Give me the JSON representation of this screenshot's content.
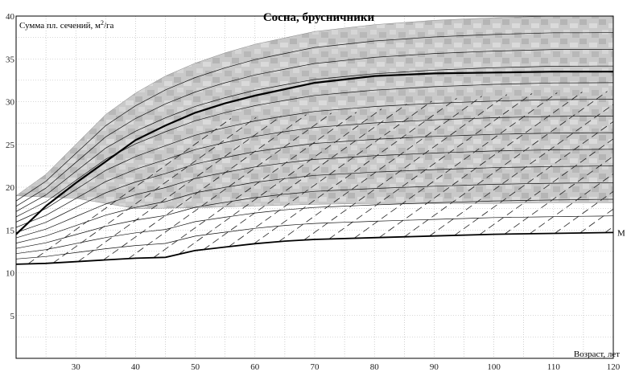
{
  "chart_data": {
    "type": "line",
    "title": "Сосна, брусничники",
    "ylabel_main": "Сумма пл. сечений, м",
    "ylabel_sup": "2",
    "ylabel_unit": "/га",
    "xlabel": "Возраст, лет",
    "xlim": [
      20,
      120
    ],
    "ylim": [
      0,
      40
    ],
    "x_ticks": [
      30,
      40,
      50,
      60,
      70,
      80,
      90,
      100,
      110,
      120
    ],
    "y_ticks": [
      5,
      10,
      15,
      20,
      25,
      30,
      35,
      40
    ],
    "grid": true,
    "shaded_band": {
      "upper": [
        [
          20,
          19
        ],
        [
          25,
          21.5
        ],
        [
          30,
          25
        ],
        [
          35,
          28.5
        ],
        [
          40,
          31
        ],
        [
          45,
          33
        ],
        [
          50,
          34.5
        ],
        [
          55,
          35.7
        ],
        [
          60,
          36.7
        ],
        [
          70,
          38.2
        ],
        [
          80,
          39
        ],
        [
          90,
          39.5
        ],
        [
          100,
          39.8
        ],
        [
          110,
          40
        ],
        [
          120,
          40
        ]
      ],
      "lower": [
        [
          20,
          19
        ],
        [
          30,
          18.7
        ],
        [
          40,
          17.5
        ],
        [
          50,
          17.6
        ],
        [
          60,
          17.8
        ],
        [
          70,
          18
        ],
        [
          80,
          18.1
        ],
        [
          90,
          18.1
        ],
        [
          100,
          18.1
        ],
        [
          110,
          18.2
        ],
        [
          120,
          18.2
        ]
      ]
    },
    "series": [
      {
        "name": "",
        "role": "upper-normal",
        "points": [
          [
            20,
            14.5
          ],
          [
            25,
            17.8
          ],
          [
            30,
            20.5
          ],
          [
            35,
            23
          ],
          [
            40,
            25.5
          ],
          [
            45,
            27.2
          ],
          [
            50,
            28.7
          ],
          [
            55,
            29.8
          ],
          [
            60,
            30.7
          ],
          [
            70,
            32.2
          ],
          [
            80,
            33
          ],
          [
            90,
            33.3
          ],
          [
            100,
            33.4
          ],
          [
            110,
            33.5
          ],
          [
            120,
            33.5
          ]
        ]
      },
      {
        "name": "M",
        "role": "minimum",
        "points": [
          [
            20,
            11
          ],
          [
            25,
            11.1
          ],
          [
            30,
            11.3
          ],
          [
            35,
            11.5
          ],
          [
            40,
            11.7
          ],
          [
            45,
            11.8
          ],
          [
            50,
            12.6
          ],
          [
            55,
            13.0
          ],
          [
            60,
            13.4
          ],
          [
            65,
            13.7
          ],
          [
            70,
            13.9
          ],
          [
            80,
            14.1
          ],
          [
            90,
            14.3
          ],
          [
            100,
            14.5
          ],
          [
            110,
            14.6
          ],
          [
            120,
            14.7
          ]
        ]
      }
    ]
  }
}
